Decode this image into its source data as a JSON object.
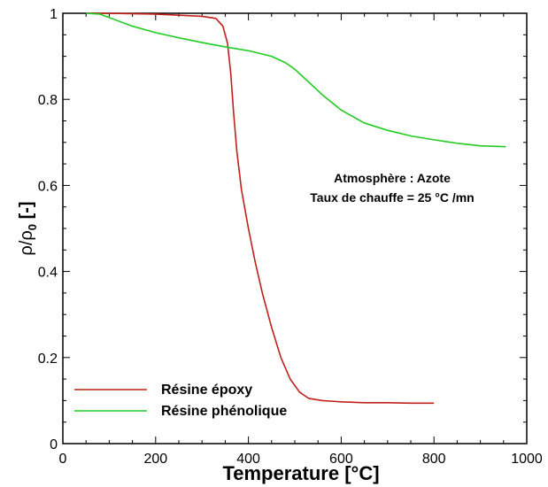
{
  "chart_data": {
    "type": "line",
    "title": "",
    "xlabel": "Temperature [°C]",
    "ylabel": {
      "rho": "ρ",
      "slash": "/",
      "rho0": "ρ",
      "sub": "0",
      "unit": " [-]"
    },
    "xlim": [
      0,
      1000
    ],
    "ylim": [
      0,
      1
    ],
    "xticks": [
      0,
      200,
      400,
      600,
      800,
      1000
    ],
    "yticks": [
      0,
      0.2,
      0.4,
      0.6,
      0.8,
      1
    ],
    "xtick_labels": [
      "0",
      "200",
      "400",
      "600",
      "800",
      "1000"
    ],
    "ytick_labels": [
      "0",
      "0.2",
      "0.4",
      "0.6",
      "0.8",
      "1"
    ],
    "grid": false,
    "legend_placement": "bottom-left",
    "annotations": [
      "Atmosphère : Azote",
      "Taux de chauffe = 25 °C /mn"
    ],
    "series": [
      {
        "name": "Résine époxy",
        "color": "#c0201a",
        "x": [
          50,
          100,
          200,
          300,
          330,
          345,
          355,
          362,
          368,
          375,
          385,
          400,
          415,
          430,
          450,
          470,
          490,
          510,
          530,
          560,
          600,
          650,
          700,
          750,
          800
        ],
        "y": [
          1.0,
          1.0,
          0.998,
          0.993,
          0.988,
          0.97,
          0.93,
          0.86,
          0.77,
          0.68,
          0.59,
          0.5,
          0.42,
          0.35,
          0.27,
          0.2,
          0.15,
          0.12,
          0.105,
          0.1,
          0.097,
          0.095,
          0.095,
          0.094,
          0.094
        ]
      },
      {
        "name": "Résine phénolique",
        "color": "#22cc22",
        "x": [
          50,
          80,
          100,
          150,
          200,
          250,
          300,
          350,
          400,
          450,
          480,
          500,
          530,
          560,
          600,
          650,
          700,
          750,
          800,
          850,
          900,
          955
        ],
        "y": [
          1.0,
          0.998,
          0.99,
          0.97,
          0.955,
          0.943,
          0.932,
          0.922,
          0.913,
          0.9,
          0.885,
          0.87,
          0.84,
          0.81,
          0.775,
          0.745,
          0.728,
          0.715,
          0.706,
          0.698,
          0.692,
          0.69
        ]
      }
    ]
  }
}
